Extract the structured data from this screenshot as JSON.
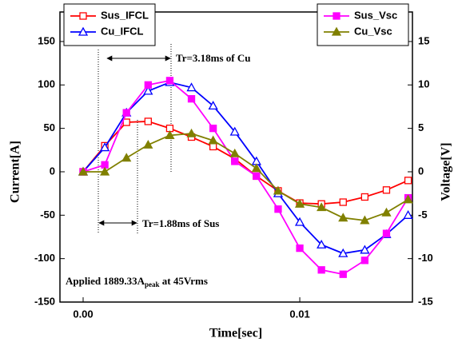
{
  "chart_data": {
    "type": "line",
    "xlabel": "Time[sec]",
    "ylabel": "Current[A]",
    "y2label": "Voltage[V]",
    "x": [
      0,
      0.001,
      0.002,
      0.003,
      0.004,
      0.005,
      0.006,
      0.007,
      0.008,
      0.009,
      0.01,
      0.011,
      0.012,
      0.013,
      0.014,
      0.015
    ],
    "xlim": [
      -0.00107,
      0.0152
    ],
    "xticks": [
      {
        "value": 0,
        "label": "0.00"
      },
      {
        "value": 0.01,
        "label": "0.01"
      }
    ],
    "ylim": [
      -150,
      184
    ],
    "yticks": [
      -150,
      -100,
      -50,
      0,
      50,
      100,
      150
    ],
    "y2lim": [
      -15,
      18.4
    ],
    "y2ticks": [
      -15,
      -10,
      -5,
      0,
      5,
      10,
      15
    ],
    "legend": {
      "y": "upper left",
      "y2": "upper right"
    },
    "series": [
      {
        "name": "Sus_IFCL",
        "color": "#ff0000",
        "marker": "square",
        "filled": false,
        "axis": "y",
        "values": [
          0,
          30,
          57,
          58,
          50,
          40,
          29,
          15,
          -5,
          -22,
          -36,
          -37,
          -35,
          -29,
          -21,
          -10
        ]
      },
      {
        "name": "Cu_IFCL",
        "color": "#0000ff",
        "marker": "triangle",
        "filled": false,
        "axis": "y",
        "values": [
          0,
          28,
          68,
          93,
          103,
          97,
          76,
          46,
          12,
          -25,
          -58,
          -84,
          -94,
          -90,
          -72,
          -50
        ]
      },
      {
        "name": "Sus_Vsc",
        "color": "#ff00ff",
        "marker": "square",
        "filled": true,
        "axis": "y2",
        "values": [
          0,
          0.8,
          6.8,
          10,
          10.5,
          8.4,
          5,
          1.2,
          -0.5,
          -4.3,
          -8.8,
          -11.3,
          -11.8,
          -10.2,
          -7.1,
          -3
        ]
      },
      {
        "name": "Cu_Vsc",
        "color": "#808000",
        "marker": "triangle",
        "filled": true,
        "axis": "y2",
        "values": [
          0,
          0,
          1.6,
          3.1,
          4.2,
          4.4,
          3.6,
          2.1,
          0.4,
          -2.2,
          -3.7,
          -4.1,
          -5.3,
          -5.6,
          -4.7,
          -3.2
        ]
      }
    ],
    "annotations": [
      "Tr=3.18ms of Cu",
      "Tr=1.88ms of Sus"
    ],
    "applied_note": {
      "main": "Applied 1889.33A",
      "subscript": "peak",
      "rest": " at 45Vrms"
    }
  }
}
